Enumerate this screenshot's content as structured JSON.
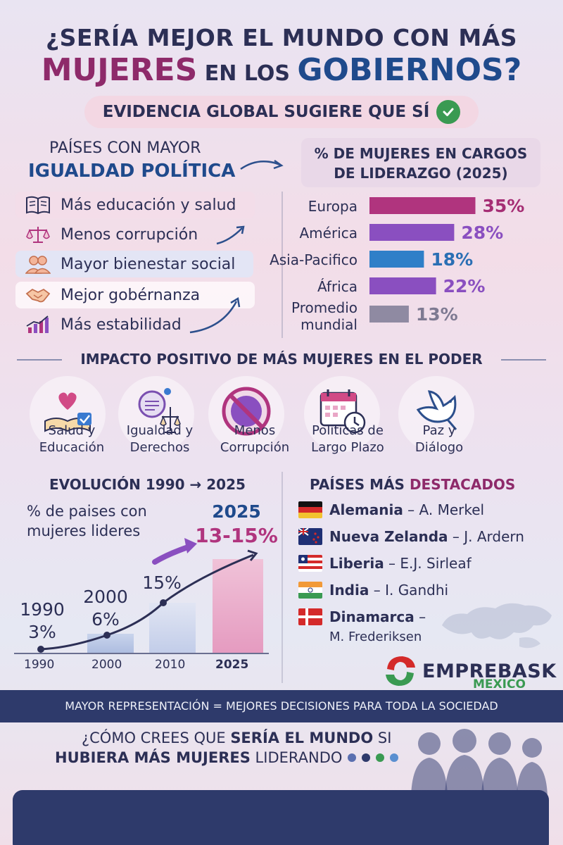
{
  "title": {
    "line1": "¿SERÍA MEJOR EL MUNDO CON MÁS",
    "line2_part1": "MUJERES",
    "line2_part2": " EN LOS ",
    "line2_part3": "GOBIERNOS?"
  },
  "banner": {
    "text": "EVIDENCIA GLOBAL SUGIERE QUE SÍ"
  },
  "countries": {
    "title_line1": "PAÍSES CON MAYOR",
    "title_line2": "IGUALDAD POLÍTICA",
    "benefits": [
      "Más educación y salud",
      "Menos corrupción",
      "Mayor bienestar social",
      "Mejor gobérnanza",
      "Más estabilidad"
    ]
  },
  "chart_header": {
    "line1": "% DE MUJERES EN CARGOS",
    "line2": "DE LIDERAZGO (2025)"
  },
  "chart_data": {
    "type": "bar",
    "title": "% DE MUJERES EN CARGOS DE LIDERAZGO (2025)",
    "categories": [
      "Europa",
      "América",
      "Asia-Pacifico",
      "África",
      "Promedio mundial"
    ],
    "values": [
      35,
      28,
      18,
      22,
      13
    ],
    "value_labels": [
      "35%",
      "28%",
      "18%",
      "22%",
      "13%"
    ],
    "colors": [
      "#b0347e",
      "#8a4fc0",
      "#2f7fc8",
      "#8a4fc0",
      "#8f8aa2"
    ],
    "label_colors": [
      "#a52d74",
      "#8a4fc0",
      "#2a6fb4",
      "#8a4fc0",
      "#7e7a92"
    ]
  },
  "impact": {
    "title": "IMPACTO POSITIVO DE MÁS MUJERES EN EL PODER",
    "items": [
      {
        "line1": "Salud y",
        "line2": "Educación"
      },
      {
        "line1": "Igualdad y",
        "line2": "Derechos"
      },
      {
        "line1": "Menos",
        "line2": "Corrupción"
      },
      {
        "line1": "Politicas de",
        "line2": "Largo Plazo"
      },
      {
        "line1": "Paz y",
        "line2": "Diálogo"
      }
    ]
  },
  "evolution": {
    "title_start": "EVOLUCIÓN 1990",
    "arrow": "→",
    "title_end": "2025",
    "subtitle_line1": "% de paises con",
    "subtitle_line2": "mujeres lideres",
    "points": [
      {
        "year": "1990",
        "value_year": "1990",
        "value": "3%",
        "number": 3
      },
      {
        "year": "2000",
        "value_year": "2000",
        "value": "6%",
        "number": 6
      },
      {
        "year": "2010",
        "value_year": "",
        "value": "15%",
        "number": 15
      },
      {
        "year": "2025",
        "value_year": "2025",
        "value": "13-15%",
        "number": 15
      }
    ]
  },
  "leaders": {
    "title_part1": "PAÍSES MÁS ",
    "title_part2": "DESTACADOS",
    "items": [
      {
        "country": "Alemania",
        "leader": " – A. Merkel"
      },
      {
        "country": "Nueva Zelanda",
        "leader": " – J. Ardern"
      },
      {
        "country": "Liberia",
        "leader": " – E.J. Sirleaf"
      },
      {
        "country": "India",
        "leader": " – I. Gandhi"
      },
      {
        "country": "Dinamarca",
        "leader": " –"
      }
    ],
    "last_continuation": "M. Frederiksen"
  },
  "logo": {
    "name": "EMPREBASK",
    "sub": "MEXICO"
  },
  "footer": {
    "text": "MAYOR REPRESENTACIÓN = MEJORES DECISIONES PARA TODA LA SOCIEDAD"
  },
  "question": {
    "line1_part1": "¿CÓMO CREES QUE ",
    "line1_part2": "SERÍA EL MUNDO",
    "line1_part3": " SI",
    "line2_part1": "HUBIERA MÁS MUJERES",
    "line2_part2": " LIDERANDO"
  },
  "icons": {
    "banner": "check-icon",
    "benefits": [
      "book-icon",
      "scale-icon",
      "people-icon",
      "handshake-icon",
      "chart-up-icon"
    ],
    "impact": [
      "heart-book-icon",
      "balance-person-icon",
      "no-corruption-icon",
      "calendar-clock-icon",
      "dove-icon"
    ]
  }
}
